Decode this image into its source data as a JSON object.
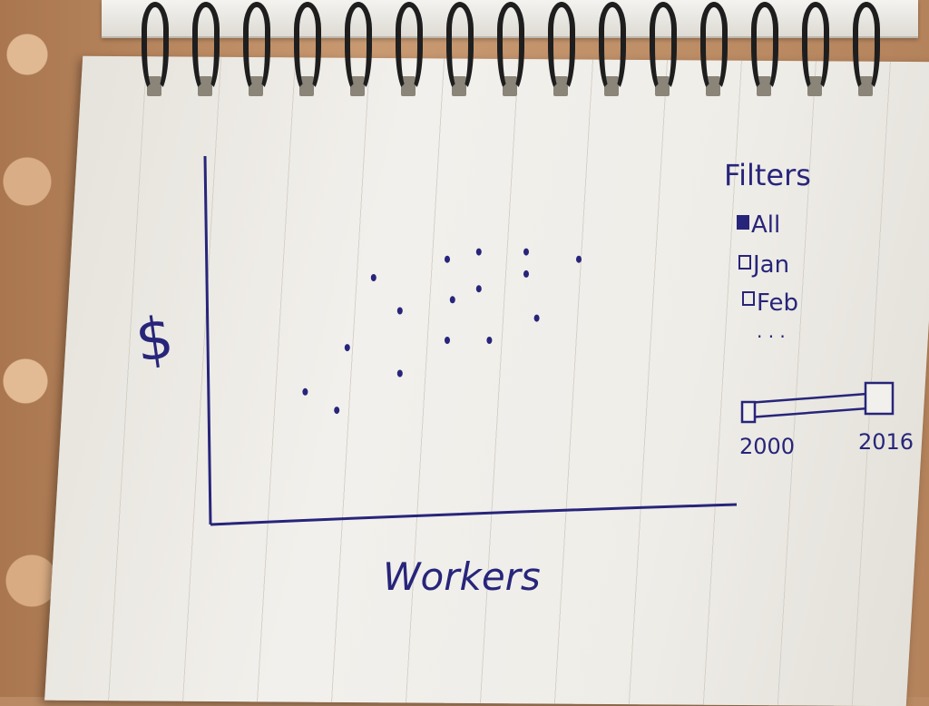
{
  "y_axis_label": "$",
  "x_axis_label": "Workers",
  "filters": {
    "title": "Filters",
    "options": [
      {
        "label": "All",
        "checked": true
      },
      {
        "label": "Jan",
        "checked": false
      },
      {
        "label": "Feb",
        "checked": false
      }
    ],
    "more": ". . ."
  },
  "year_slider": {
    "min_label": "2000",
    "max_label": "2016",
    "range": [
      2000,
      2016
    ],
    "selected": [
      2000,
      2016
    ]
  },
  "ink_color": "#27257a",
  "chart_data": {
    "type": "scatter",
    "xlabel": "Workers",
    "ylabel": "$",
    "points": [
      {
        "x": 0.18,
        "y": 0.36
      },
      {
        "x": 0.24,
        "y": 0.31
      },
      {
        "x": 0.26,
        "y": 0.48
      },
      {
        "x": 0.31,
        "y": 0.67
      },
      {
        "x": 0.36,
        "y": 0.41
      },
      {
        "x": 0.36,
        "y": 0.58
      },
      {
        "x": 0.45,
        "y": 0.5
      },
      {
        "x": 0.45,
        "y": 0.72
      },
      {
        "x": 0.46,
        "y": 0.61
      },
      {
        "x": 0.51,
        "y": 0.74
      },
      {
        "x": 0.51,
        "y": 0.64
      },
      {
        "x": 0.53,
        "y": 0.5
      },
      {
        "x": 0.6,
        "y": 0.74
      },
      {
        "x": 0.6,
        "y": 0.68
      },
      {
        "x": 0.62,
        "y": 0.56
      },
      {
        "x": 0.7,
        "y": 0.72
      }
    ]
  }
}
